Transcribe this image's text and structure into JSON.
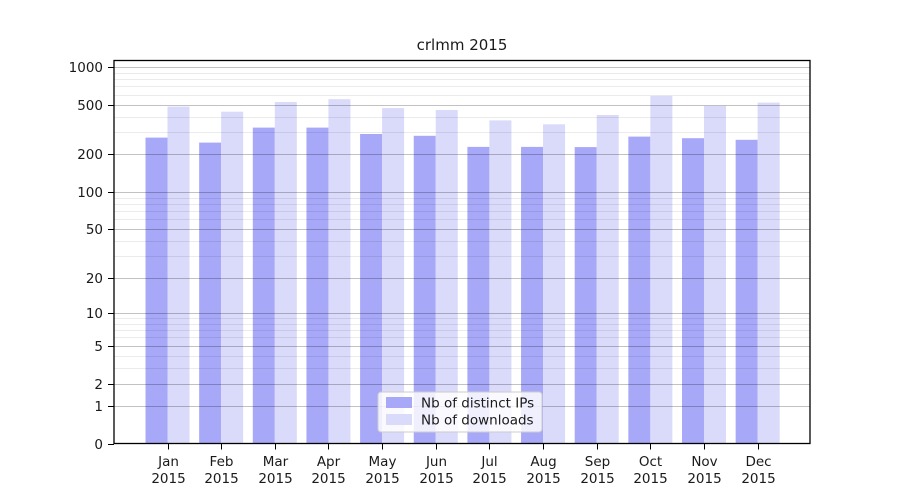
{
  "chart_data": {
    "type": "bar",
    "title": "crlmm 2015",
    "categories": [
      "Jan 2015",
      "Feb 2015",
      "Mar 2015",
      "Apr 2015",
      "May 2015",
      "Jun 2015",
      "Jul 2015",
      "Aug 2015",
      "Sep 2015",
      "Oct 2015",
      "Nov 2015",
      "Dec 2015"
    ],
    "series": [
      {
        "name": "Nb of distinct IPs",
        "color": "#a8a8f8",
        "values": [
          273,
          249,
          328,
          328,
          292,
          282,
          230,
          230,
          229,
          278,
          270,
          262
        ]
      },
      {
        "name": "Nb of downloads",
        "color": "#dadafa",
        "values": [
          483,
          440,
          526,
          553,
          470,
          454,
          375,
          349,
          414,
          588,
          489,
          520
        ]
      }
    ],
    "y_axis": {
      "scale": "log10(1+v)",
      "ticks": [
        0,
        1,
        2,
        5,
        10,
        20,
        50,
        100,
        200,
        500,
        1000
      ],
      "minor_gridlines": [
        3,
        4,
        6,
        7,
        8,
        9,
        30,
        40,
        60,
        70,
        80,
        90,
        300,
        400,
        600,
        700,
        800,
        900
      ],
      "max": 1000
    },
    "legend": {
      "position": "bottom-center"
    },
    "colors": {
      "frame": "#000000",
      "text": "#1a1a1a",
      "grid_major": "rgba(0,0,0,0.24)",
      "grid_minor": "rgba(0,0,0,0.08)",
      "legend_border": "#cccccc",
      "legend_bg": "rgba(255,255,255,0.82)"
    }
  }
}
